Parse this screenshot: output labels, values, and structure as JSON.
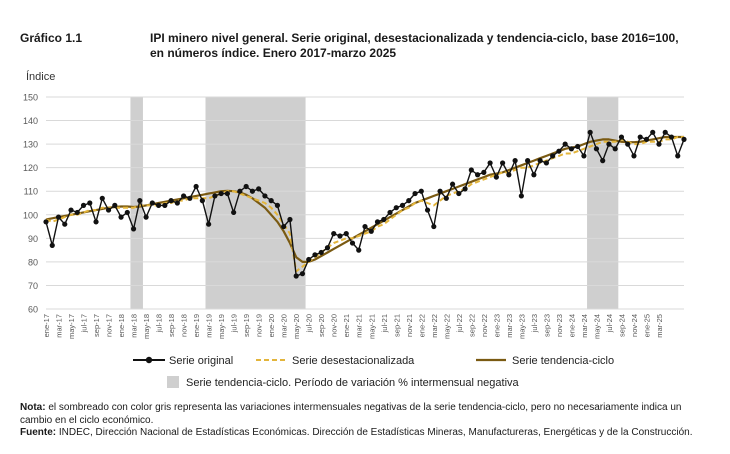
{
  "figure_label": "Gráfico 1.1",
  "title": "IPI minero nivel general. Serie original, desestacionalizada y tendencia-ciclo, base 2016=100, en números índice. Enero 2017-marzo 2025",
  "notes": {
    "nota_label": "Nota:",
    "nota_text": " el sombreado con color gris representa las variaciones intermensuales negativas de la serie tendencia-ciclo, pero no necesariamente indica un cambio en el ciclo económico.",
    "fuente_label": "Fuente:",
    "fuente_text": " INDEC, Dirección Nacional de Estadísticas Económicas. Dirección de Estadísticas Mineras, Manufactureras, Energéticas y de la Construcción."
  },
  "colors": {
    "original": "#111111",
    "desest": "#e3b53b",
    "tendencia": "#7a5a12",
    "shade": "#cfcfcf",
    "grid": "#d9d9d9",
    "axis_text": "#595959"
  },
  "chart_data": {
    "type": "line",
    "title": "IPI minero nivel general. Serie original, desestacionalizada y tendencia-ciclo, base 2016=100, en números índice. Enero 2017-marzo 2025",
    "ylabel": "Índice",
    "xlabel": "",
    "ylim": [
      60,
      150
    ],
    "yticks": [
      60,
      70,
      80,
      90,
      100,
      110,
      120,
      130,
      140,
      150
    ],
    "grid": true,
    "legend_position": "bottom",
    "xtick_labels": [
      "ene-17",
      "mar-17",
      "may-17",
      "jul-17",
      "sep-17",
      "nov-17",
      "ene-18",
      "mar-18",
      "may-18",
      "jul-18",
      "sep-18",
      "nov-18",
      "ene-19",
      "mar-19",
      "may-19",
      "jul-19",
      "sep-19",
      "nov-19",
      "ene-20",
      "mar-20",
      "may-20",
      "jul-20",
      "sep-20",
      "nov-20",
      "ene-21",
      "mar-21",
      "may-21",
      "jul-21",
      "sep-21",
      "nov-21",
      "ene-22",
      "mar-22",
      "may-22",
      "jul-22",
      "sep-22",
      "nov-22",
      "ene-23",
      "mar-23",
      "may-23",
      "jul-23",
      "sep-23",
      "nov-23",
      "ene-24",
      "mar-24",
      "may-24",
      "jul-24",
      "sep-24",
      "nov-24",
      "ene-25",
      "mar-25"
    ],
    "shaded_periods": [
      {
        "start": 14,
        "end": 15
      },
      {
        "start": 26,
        "end": 41
      },
      {
        "start": 87,
        "end": 91
      }
    ],
    "series": [
      {
        "name": "Serie original",
        "style": "line-markers",
        "values": [
          97,
          87,
          99,
          96,
          102,
          101,
          104,
          105,
          97,
          107,
          102,
          104,
          99,
          101,
          94,
          106,
          99,
          105,
          104,
          104,
          106,
          105,
          108,
          107,
          112,
          106,
          96,
          108,
          109,
          109,
          101,
          110,
          112,
          110,
          111,
          108,
          106,
          104,
          95,
          98,
          74,
          75,
          81,
          83,
          84,
          86,
          92,
          91,
          92,
          88,
          85,
          95,
          93,
          97,
          98,
          101,
          103,
          104,
          106,
          109,
          110,
          102,
          95,
          110,
          107,
          113,
          109,
          111,
          119,
          117,
          118,
          122,
          116,
          122,
          117,
          123,
          108,
          123,
          117,
          123,
          122,
          125,
          127,
          130,
          128,
          129,
          125,
          135,
          128,
          123,
          130,
          128,
          133,
          130,
          125,
          133,
          132,
          135,
          130,
          135,
          133,
          125,
          132
        ]
      },
      {
        "name": "Serie desestacionalizada",
        "style": "dashed",
        "values": [
          98,
          97,
          98,
          99,
          100,
          100,
          101,
          102,
          102,
          103,
          103,
          103,
          103,
          103,
          103,
          104,
          104,
          104,
          104,
          105,
          105,
          106,
          106,
          107,
          107,
          107,
          107,
          108,
          109,
          110,
          110,
          109,
          108,
          107,
          106,
          105,
          103,
          100,
          96,
          92,
          76,
          78,
          80,
          82,
          84,
          86,
          88,
          89,
          90,
          90,
          91,
          92,
          93,
          95,
          96,
          98,
          100,
          102,
          103,
          105,
          106,
          105,
          104,
          106,
          108,
          109,
          110,
          111,
          113,
          114,
          115,
          116,
          117,
          118,
          118,
          119,
          120,
          120,
          121,
          122,
          123,
          124,
          125,
          126,
          126,
          127,
          128,
          129,
          130,
          131,
          131,
          131,
          132,
          131,
          130,
          130,
          131,
          131,
          131,
          132,
          132,
          133,
          133
        ]
      },
      {
        "name": "Serie tendencia-ciclo",
        "style": "solid",
        "values": [
          98,
          98.5,
          99,
          99.5,
          100,
          100.5,
          101,
          101.5,
          102,
          102.5,
          103,
          103.3,
          103.5,
          103.5,
          103.3,
          103.5,
          104,
          104.5,
          105,
          105.5,
          106,
          106.5,
          107,
          107.5,
          108,
          108.5,
          109,
          109.5,
          110,
          110.2,
          110,
          109.5,
          108.5,
          107,
          105,
          103,
          100,
          97,
          93,
          88,
          82,
          80,
          80,
          81,
          82.5,
          84,
          85.5,
          87,
          88.5,
          90,
          91.5,
          93,
          94.5,
          96,
          97.5,
          99,
          100.5,
          102,
          103.5,
          105,
          106,
          107,
          108,
          109,
          110,
          111,
          112,
          113,
          114,
          115,
          116,
          117,
          117.5,
          118,
          119,
          120,
          121,
          122,
          123,
          124,
          125,
          126,
          127,
          128,
          128.5,
          129,
          130,
          131,
          131.5,
          132,
          132,
          131.5,
          131,
          130.8,
          130.8,
          131,
          131.5,
          132,
          132.5,
          133,
          133,
          133,
          133
        ]
      }
    ]
  },
  "legend": {
    "original": "Serie original",
    "desest": "Serie desestacionalizada",
    "tendencia": "Serie tendencia-ciclo",
    "shade": "Serie tendencia-ciclo. Período de variación % intermensual negativa"
  }
}
